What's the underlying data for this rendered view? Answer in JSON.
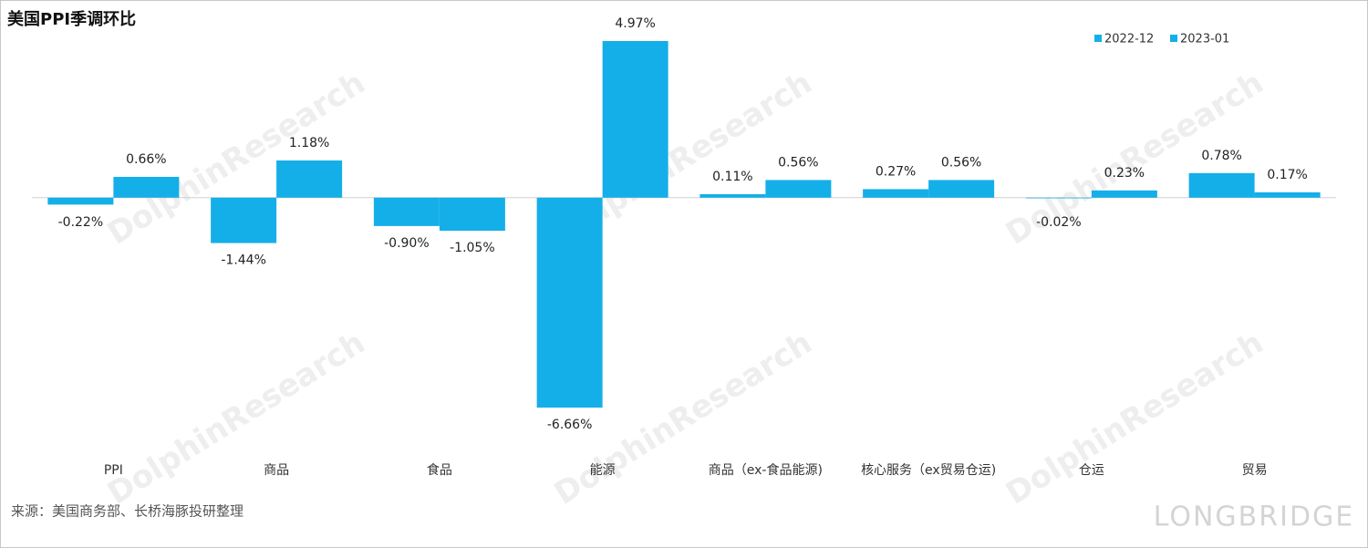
{
  "chart_data": {
    "type": "bar",
    "title": "美国PPI季调环比",
    "categories": [
      "PPI",
      "商品",
      "食品",
      "能源",
      "商品（ex-食品能源)",
      "核心服务（ex贸易仓运)",
      "仓运",
      "贸易"
    ],
    "series": [
      {
        "name": "2022-12",
        "color": "#14afe8",
        "values": [
          -0.22,
          -1.44,
          -0.9,
          -6.66,
          0.11,
          0.27,
          -0.02,
          0.78
        ],
        "value_labels": [
          "-0.22%",
          "-1.44%",
          "-0.90%",
          "-6.66%",
          "0.11%",
          "0.27%",
          "-0.02%",
          "0.78%"
        ]
      },
      {
        "name": "2023-01",
        "color": "#14afe8",
        "values": [
          0.66,
          1.18,
          -1.05,
          4.97,
          0.56,
          0.56,
          0.23,
          0.17
        ],
        "value_labels": [
          "0.66%",
          "1.18%",
          "-1.05%",
          "4.97%",
          "0.56%",
          "0.56%",
          "0.23%",
          "0.17%"
        ]
      }
    ],
    "legend": "top-right",
    "source": "来源：美国商务部、长桥海豚投研整理",
    "watermark": "DolphinResearch",
    "brand": "LONGBRIDGE"
  }
}
